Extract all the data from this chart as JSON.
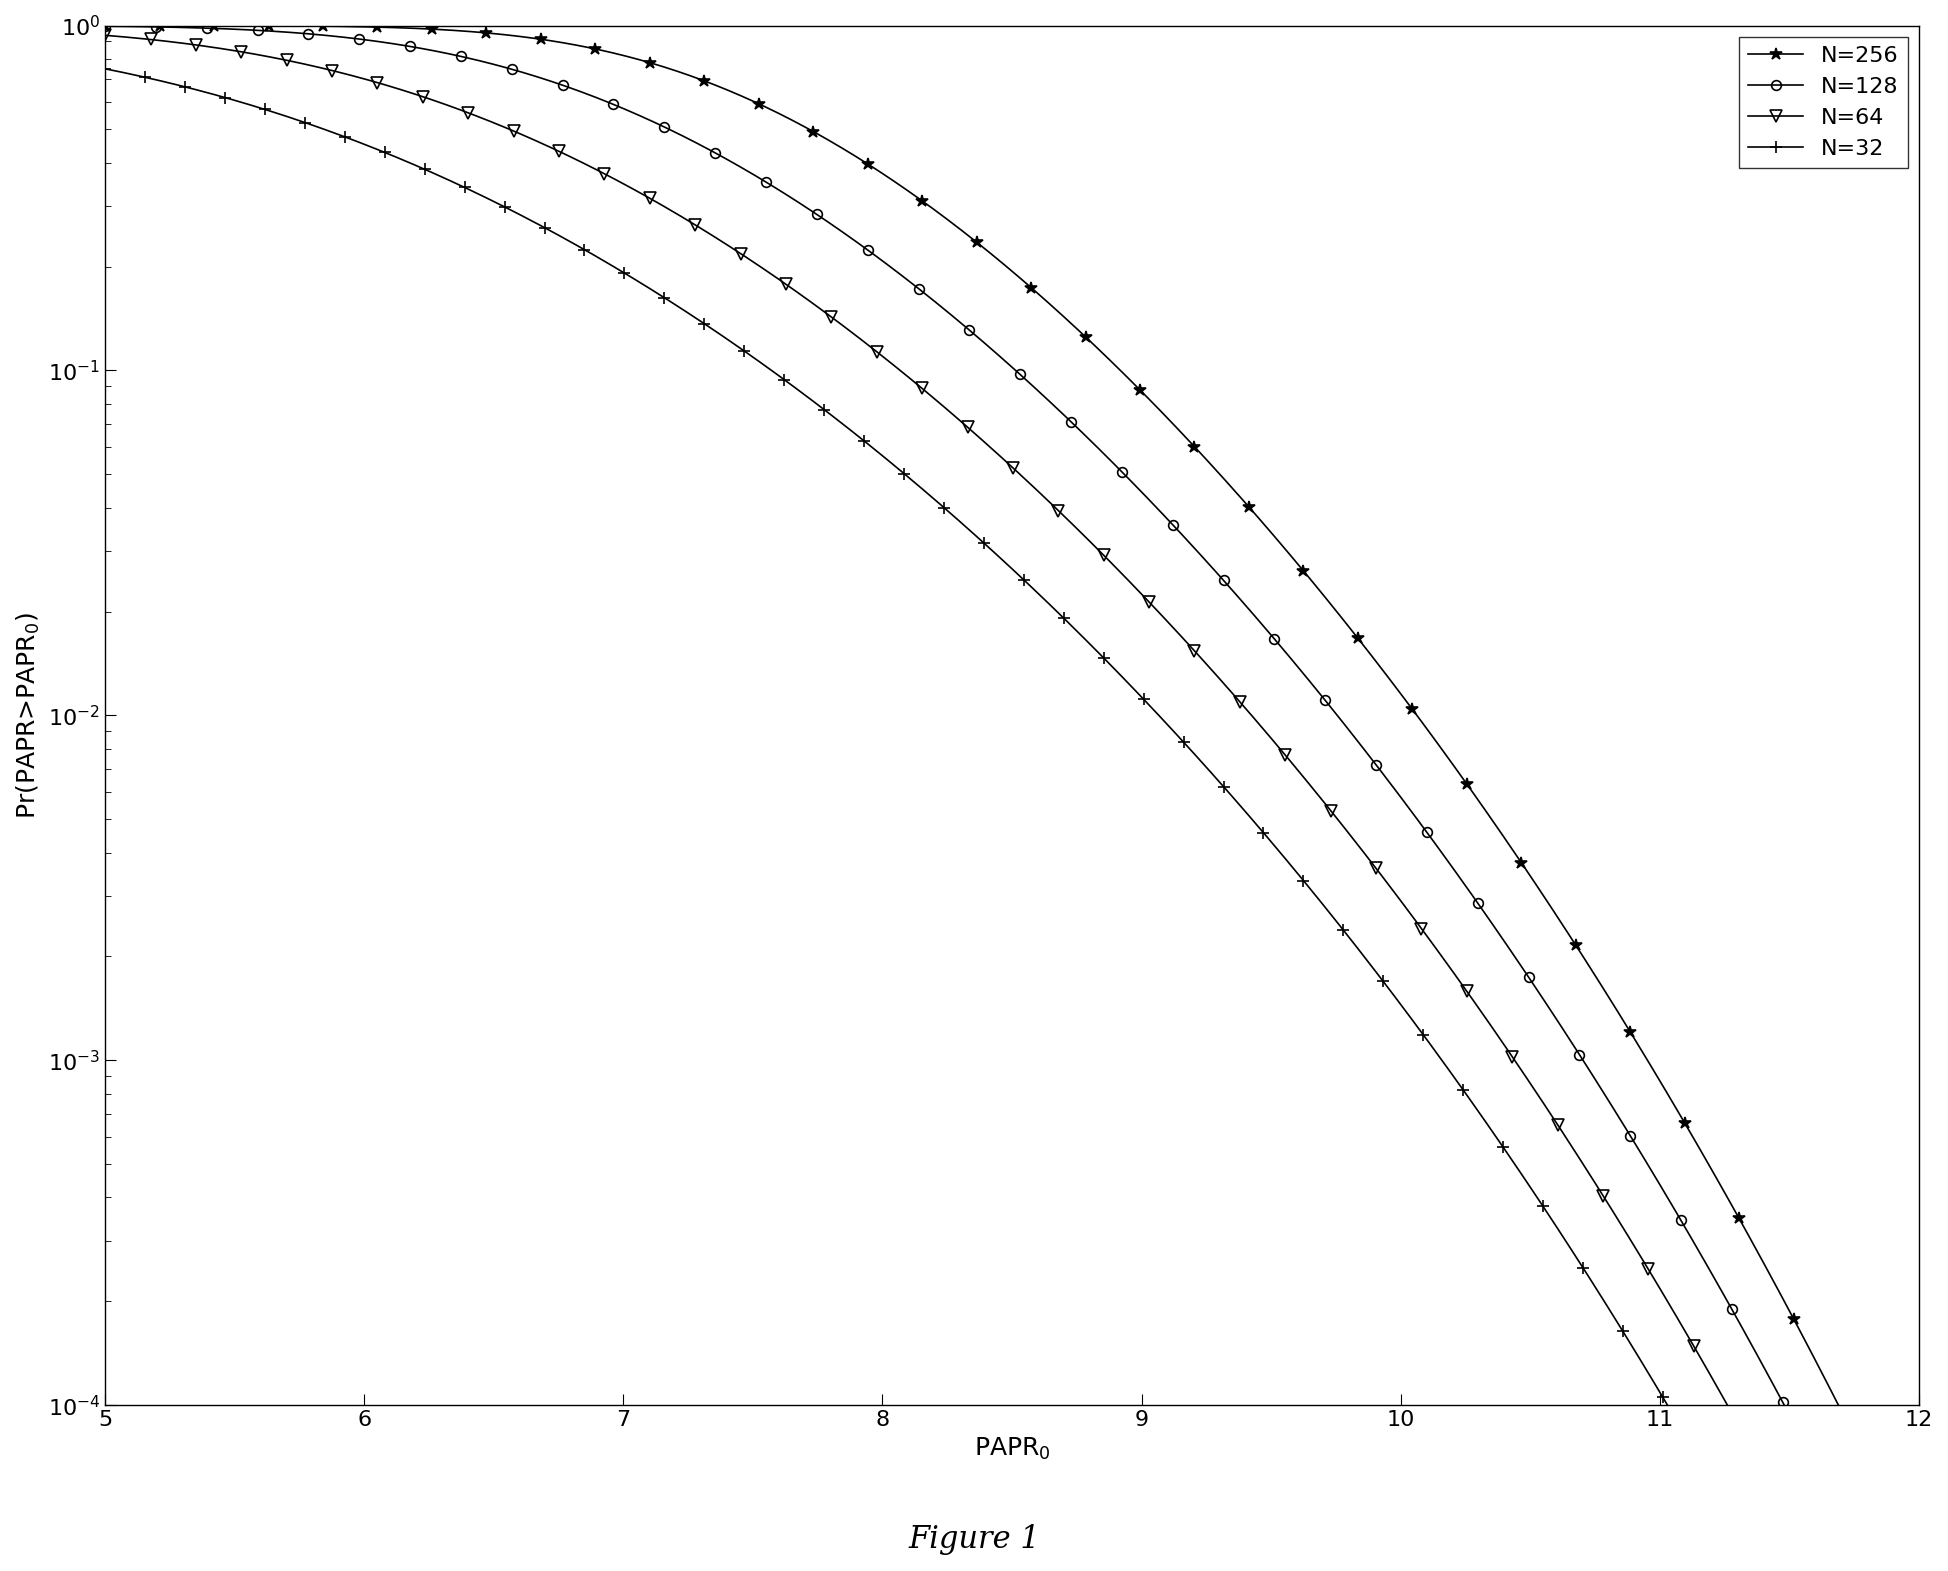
{
  "title": "Figure 1",
  "xlabel": "PAPR$_0$",
  "ylabel": "Pr(PAPR>PAPR$_0$)",
  "xlim": [
    5,
    12
  ],
  "ylim": [
    0.0001,
    1.0
  ],
  "xticks": [
    5,
    6,
    7,
    8,
    9,
    10,
    11,
    12
  ],
  "series": [
    {
      "label": "N=256",
      "N": 256,
      "marker": "*",
      "color": "black",
      "lw": 1.2,
      "markersize": 9,
      "markevery": 30
    },
    {
      "label": "N=128",
      "N": 128,
      "marker": "o",
      "color": "black",
      "lw": 1.2,
      "markersize": 7,
      "markevery": 28
    },
    {
      "label": "N=64",
      "N": 64,
      "marker": "v",
      "color": "black",
      "lw": 1.2,
      "markersize": 8,
      "markevery": 25
    },
    {
      "label": "N=32",
      "N": 32,
      "marker": "+",
      "color": "black",
      "lw": 1.2,
      "markersize": 8,
      "markevery": 22
    }
  ],
  "legend_loc": "upper right",
  "background_color": "white",
  "title_fontsize": 22,
  "label_fontsize": 18,
  "tick_fontsize": 16,
  "legend_fontsize": 16
}
